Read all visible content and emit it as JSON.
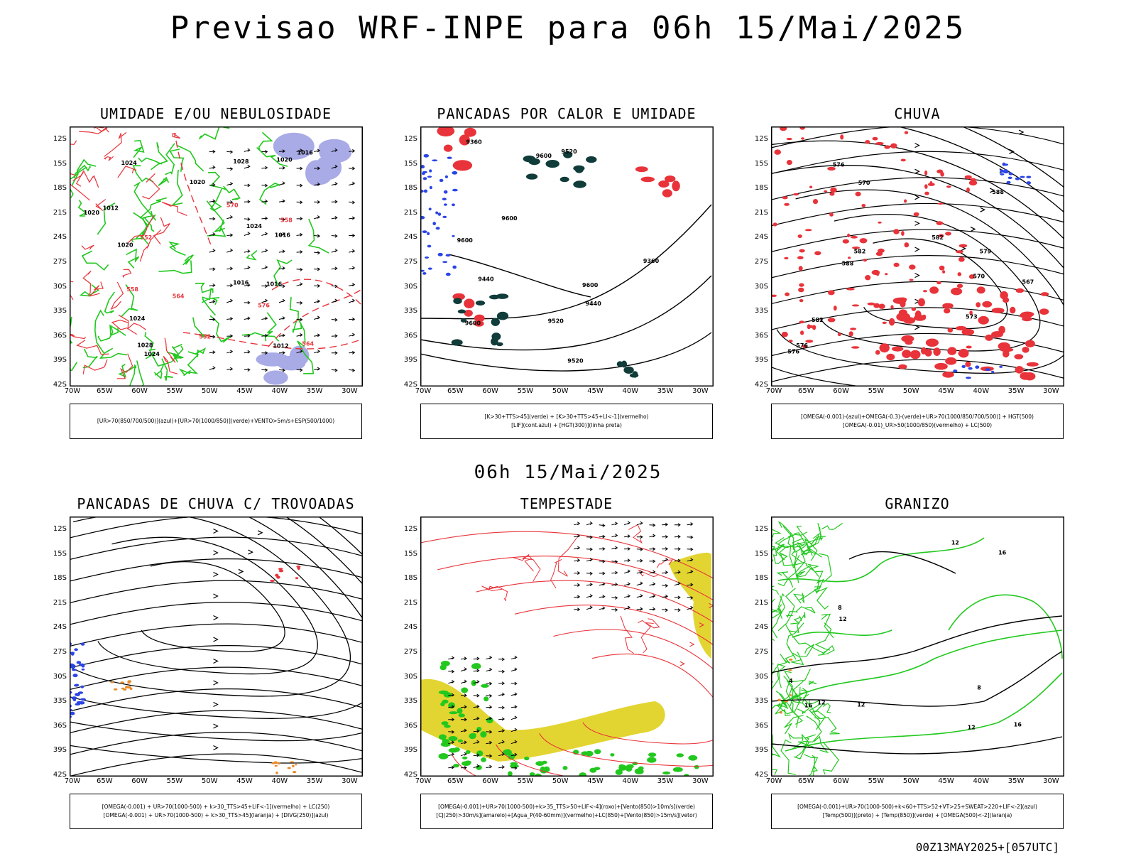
{
  "header": {
    "title": "Previsao WRF-INPE  para 06h 15/Mai/2025"
  },
  "mid_title": "06h 15/Mai/2025",
  "run_stamp": "00Z13MAY2025+[057UTC]",
  "axes": {
    "lat_ticks": [
      "12S",
      "15S",
      "18S",
      "21S",
      "24S",
      "27S",
      "30S",
      "33S",
      "36S",
      "39S",
      "42S"
    ],
    "lon_ticks": [
      "70W",
      "65W",
      "60W",
      "55W",
      "50W",
      "45W",
      "40W",
      "35W",
      "30W"
    ]
  },
  "colors": {
    "red": "#e8333a",
    "green": "#22c81e",
    "blue": "#2a44e6",
    "darkteal": "#103c3a",
    "yellow": "#e3d531",
    "orange": "#e88a2a",
    "lavender": "#a9abe6"
  },
  "chart_data": [
    {
      "type": "map",
      "title": "UMIDADE E/OU NEBULOSIDADE",
      "legend": [
        "[UR>70(850/700/500)](azul)+[UR>70(1000/850)](verde)+VENTO>5m/s+ESP(500/1000)"
      ],
      "xlim": [
        -70,
        -28
      ],
      "ylim": [
        -42,
        -11
      ],
      "contour_labels": [
        "1016",
        "1016",
        "1020",
        "1020",
        "1024",
        "1024",
        "1024",
        "1024",
        "1028",
        "1028",
        "1020",
        "1012",
        "1016",
        "1012",
        "1020",
        "1016"
      ],
      "red_labels": [
        "570",
        "576",
        "564",
        "558",
        "552",
        "552",
        "558",
        "564"
      ]
    },
    {
      "type": "map",
      "title": "PANCADAS POR CALOR E UMIDADE",
      "legend": [
        "[K>30+TTS>45](verde) + [K>30+TTS>45+LI<-1](vermelho)",
        "[LIF](cont.azul) + [HGT(300)](linha preta)"
      ],
      "xlim": [
        -70,
        -28
      ],
      "ylim": [
        -42,
        -11
      ],
      "contour_labels": [
        "9600",
        "9600",
        "9600",
        "9520",
        "9600",
        "9600",
        "9520",
        "9440",
        "9520",
        "9440",
        "9360",
        "9360"
      ]
    },
    {
      "type": "map",
      "title": "CHUVA",
      "legend": [
        "[OMEGA(-0.001)-(azul)+OMEGA(-0.3)-(verde)+UR>70(1000/850/700/500)] + HGT(500)",
        "[OMEGA(-0.01)_UR>50(1000/850)(vermelho) + LC(500)"
      ],
      "xlim": [
        -70,
        -28
      ],
      "ylim": [
        -42,
        -11
      ],
      "contour_labels": [
        "588",
        "588",
        "582",
        "582",
        "576",
        "576",
        "570",
        "567",
        "573",
        "576",
        "579",
        "582",
        "570"
      ]
    },
    {
      "type": "map",
      "title": "PANCADAS DE CHUVA C/ TROVOADAS",
      "legend": [
        "[OMEGA(-0.001) + UR>70(1000-500) + k>30_TTS>45+LIF<-1](vermelho) + LC(250)",
        "[OMEGA(-0.001) + UR>70(1000-500) + k>30_TTS>45](laranja) + [DIVG(250)](azul)"
      ],
      "xlim": [
        -70,
        -28
      ],
      "ylim": [
        -42,
        -11
      ]
    },
    {
      "type": "map",
      "title": "TEMPESTADE",
      "legend": [
        "[OMEGA(-0.001)+UR>70(1000-500)+k>35_TTS>50+LIF<-4](roxo)+[Vento(850)>10m/s](verde)",
        "[CJ(250)>30m/s](amarelo)+[Agua_P(40-60mm)](vermelho)+LC(850)+[Vento(850)>15m/s](vetor)"
      ],
      "xlim": [
        -70,
        -28
      ],
      "ylim": [
        -42,
        -11
      ]
    },
    {
      "type": "map",
      "title": "GRANIZO",
      "legend": [
        "[OMEGA(-0.001)+UR>70(1000-500)+k<60+TTS>52+VT>25+SWEAT>220+LIF<-2](azul)",
        "[Temp(500)](preto) + [Temp(850)](verde) + [OMEGA(500)<-2](laranja)"
      ],
      "xlim": [
        -70,
        -28
      ],
      "ylim": [
        -42,
        -11
      ],
      "contour_labels": [
        "16",
        "12",
        "8",
        "12",
        "16",
        "12",
        "8",
        "4",
        "12",
        "16",
        "12"
      ]
    }
  ]
}
